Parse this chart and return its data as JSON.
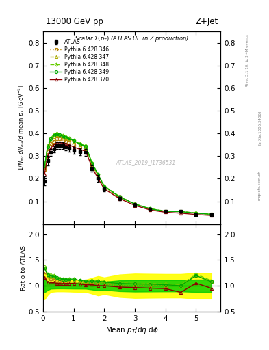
{
  "title_left": "13000 GeV pp",
  "title_right": "Z+Jet",
  "main_title": "Scalar Σ(p_T) (ATLAS UE in Z production)",
  "xlabel": "Mean p_T/dη dφ",
  "ylabel_main": "1/N_ev dN_ev/d mean p_T [GeV]",
  "ylabel_ratio": "Ratio to ATLAS",
  "watermark": "ATLAS_2019_I1736531",
  "right_label1": "Rivet 3.1.10, ≥ 3.4M events",
  "right_label2": "[arXiv:1306.3436]",
  "right_label3": "mcplots.cern.ch",
  "atlas_data_x": [
    0.05,
    0.15,
    0.25,
    0.35,
    0.45,
    0.55,
    0.65,
    0.75,
    0.85,
    1.0,
    1.2,
    1.4,
    1.6,
    1.8,
    2.0,
    2.5,
    3.0,
    3.5,
    4.0,
    4.5,
    5.0,
    5.5
  ],
  "atlas_data_y": [
    0.19,
    0.28,
    0.315,
    0.33,
    0.345,
    0.345,
    0.345,
    0.34,
    0.335,
    0.325,
    0.32,
    0.315,
    0.245,
    0.2,
    0.155,
    0.115,
    0.085,
    0.065,
    0.055,
    0.055,
    0.04,
    0.04
  ],
  "atlas_err_y": [
    0.02,
    0.02,
    0.015,
    0.015,
    0.015,
    0.015,
    0.015,
    0.015,
    0.015,
    0.015,
    0.015,
    0.015,
    0.015,
    0.015,
    0.01,
    0.01,
    0.008,
    0.006,
    0.005,
    0.005,
    0.004,
    0.004
  ],
  "py346_x": [
    0.05,
    0.15,
    0.25,
    0.35,
    0.45,
    0.55,
    0.65,
    0.75,
    0.85,
    1.0,
    1.2,
    1.4,
    1.6,
    1.8,
    2.0,
    2.5,
    3.0,
    3.5,
    4.0,
    4.5,
    5.0,
    5.5
  ],
  "py346_y": [
    0.24,
    0.32,
    0.355,
    0.365,
    0.375,
    0.375,
    0.37,
    0.365,
    0.36,
    0.35,
    0.34,
    0.33,
    0.26,
    0.21,
    0.16,
    0.115,
    0.085,
    0.065,
    0.055,
    0.055,
    0.048,
    0.043
  ],
  "py347_x": [
    0.05,
    0.15,
    0.25,
    0.35,
    0.45,
    0.55,
    0.65,
    0.75,
    0.85,
    1.0,
    1.2,
    1.4,
    1.6,
    1.8,
    2.0,
    2.5,
    3.0,
    3.5,
    4.0,
    4.5,
    5.0,
    5.5
  ],
  "py347_y": [
    0.255,
    0.335,
    0.37,
    0.385,
    0.395,
    0.39,
    0.385,
    0.38,
    0.375,
    0.365,
    0.35,
    0.34,
    0.265,
    0.215,
    0.165,
    0.12,
    0.088,
    0.067,
    0.056,
    0.055,
    0.048,
    0.043
  ],
  "py348_x": [
    0.05,
    0.15,
    0.25,
    0.35,
    0.45,
    0.55,
    0.65,
    0.75,
    0.85,
    1.0,
    1.2,
    1.4,
    1.6,
    1.8,
    2.0,
    2.5,
    3.0,
    3.5,
    4.0,
    4.5,
    5.0,
    5.5
  ],
  "py348_y": [
    0.26,
    0.345,
    0.38,
    0.395,
    0.4,
    0.395,
    0.39,
    0.385,
    0.38,
    0.37,
    0.355,
    0.345,
    0.27,
    0.22,
    0.168,
    0.122,
    0.089,
    0.068,
    0.057,
    0.056,
    0.049,
    0.044
  ],
  "py349_x": [
    0.05,
    0.15,
    0.25,
    0.35,
    0.45,
    0.55,
    0.65,
    0.75,
    0.85,
    1.0,
    1.2,
    1.4,
    1.6,
    1.8,
    2.0,
    2.5,
    3.0,
    3.5,
    4.0,
    4.5,
    5.0,
    5.5
  ],
  "py349_y": [
    0.255,
    0.34,
    0.375,
    0.39,
    0.398,
    0.393,
    0.388,
    0.383,
    0.378,
    0.368,
    0.353,
    0.343,
    0.268,
    0.218,
    0.166,
    0.12,
    0.088,
    0.067,
    0.056,
    0.055,
    0.048,
    0.043
  ],
  "py370_x": [
    0.05,
    0.15,
    0.25,
    0.35,
    0.45,
    0.55,
    0.65,
    0.75,
    0.85,
    1.0,
    1.2,
    1.4,
    1.6,
    1.8,
    2.0,
    2.5,
    3.0,
    3.5,
    4.0,
    4.5,
    5.0,
    5.5
  ],
  "py370_y": [
    0.22,
    0.3,
    0.335,
    0.35,
    0.36,
    0.36,
    0.358,
    0.355,
    0.35,
    0.34,
    0.33,
    0.32,
    0.25,
    0.2,
    0.155,
    0.112,
    0.082,
    0.062,
    0.052,
    0.048,
    0.042,
    0.038
  ],
  "color_346": "#b8860b",
  "color_347": "#aaaa00",
  "color_348": "#66cc00",
  "color_349": "#00aa00",
  "color_370": "#8b0000",
  "band_yellow": "#ffff00",
  "band_green": "#00cc00",
  "xlim": [
    0,
    5.8
  ],
  "ylim_main": [
    0.0,
    0.85
  ],
  "ylim_ratio": [
    0.5,
    2.2
  ],
  "yticks_main": [
    0.1,
    0.2,
    0.3,
    0.4,
    0.5,
    0.6,
    0.7,
    0.8
  ],
  "yticks_ratio": [
    0.5,
    1.0,
    1.5,
    2.0
  ],
  "xticks": [
    0,
    1,
    2,
    3,
    4,
    5
  ]
}
